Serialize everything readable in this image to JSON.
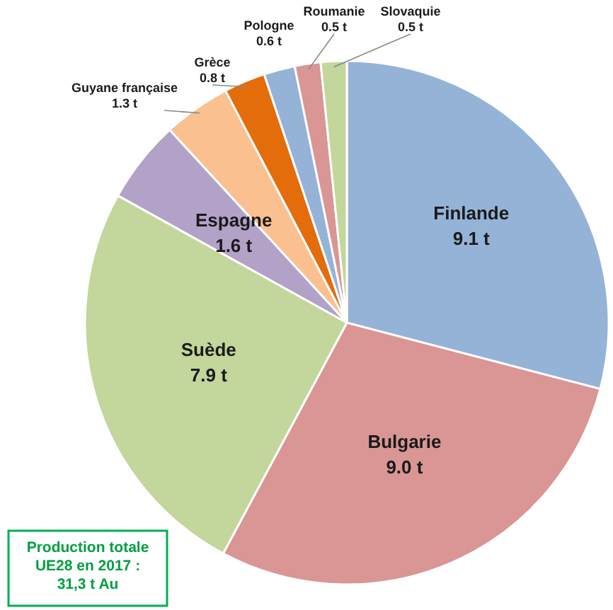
{
  "chart_data": {
    "type": "pie",
    "categories": [
      "Finlande",
      "Bulgarie",
      "Suède",
      "Espagne",
      "Guyane française",
      "Grèce",
      "Pologne",
      "Roumanie",
      "Slovaquie"
    ],
    "values": [
      9.1,
      9.0,
      7.9,
      1.6,
      1.3,
      0.8,
      0.6,
      0.5,
      0.5
    ],
    "value_labels": [
      "9.1 t",
      "9.0 t",
      "7.9 t",
      "1.6 t",
      "1.3 t",
      "0.8 t",
      "0.6 t",
      "0.5 t",
      "0.5 t"
    ],
    "colors": [
      "#95b3d7",
      "#d99694",
      "#c3d69b",
      "#b3a2c7",
      "#fac090",
      "#e46c0a",
      "#95b3d7",
      "#d99694",
      "#c3d69b"
    ],
    "annotations": [
      "Production totale UE28 en 2017 : 31,3 t Au"
    ]
  }
}
